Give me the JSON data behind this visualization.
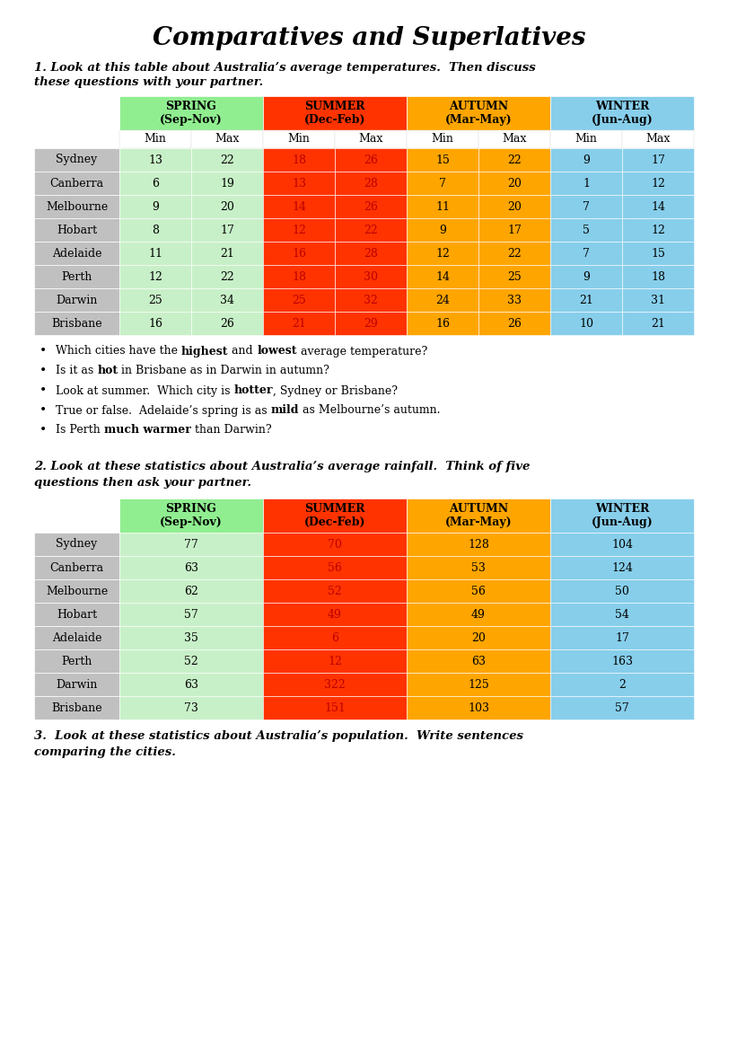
{
  "title": "Comparatives and Superlatives",
  "section1_label": "1. Look at this table about Australia’s average temperatures.  Then discuss\nthese questions with your partner.",
  "section2_label": "2. Look at these statistics about Australia’s average rainfall.  Think of five\nquestions then ask your partner.",
  "section3_label": "3.  Look at these statistics about Australia’s population.  Write sentences\ncomparing the cities.",
  "season_colors_header": [
    "#90EE90",
    "#FF3300",
    "#FFA500",
    "#87CEEB"
  ],
  "season_colors_data_spring": "#C8F0C8",
  "season_colors_data_summer": "#FF3300",
  "season_colors_data_autumn": "#FFA500",
  "season_colors_data_winter": "#87CEEB",
  "city_bg": "#C0C0C0",
  "white": "#FFFFFF",
  "cities": [
    "Sydney",
    "Canberra",
    "Melbourne",
    "Hobart",
    "Adelaide",
    "Perth",
    "Darwin",
    "Brisbane"
  ],
  "temp_data": [
    [
      13,
      22,
      18,
      26,
      15,
      22,
      9,
      17
    ],
    [
      6,
      19,
      13,
      28,
      7,
      20,
      1,
      12
    ],
    [
      9,
      20,
      14,
      26,
      11,
      20,
      7,
      14
    ],
    [
      8,
      17,
      12,
      22,
      9,
      17,
      5,
      12
    ],
    [
      11,
      21,
      16,
      28,
      12,
      22,
      7,
      15
    ],
    [
      12,
      22,
      18,
      30,
      14,
      25,
      9,
      18
    ],
    [
      25,
      34,
      25,
      32,
      24,
      33,
      21,
      31
    ],
    [
      16,
      26,
      21,
      29,
      16,
      26,
      10,
      21
    ]
  ],
  "rain_data": [
    [
      77,
      70,
      128,
      104
    ],
    [
      63,
      56,
      53,
      124
    ],
    [
      62,
      52,
      56,
      50
    ],
    [
      57,
      49,
      49,
      54
    ],
    [
      35,
      6,
      20,
      17
    ],
    [
      52,
      12,
      63,
      163
    ],
    [
      63,
      322,
      125,
      2
    ],
    [
      73,
      151,
      103,
      57
    ]
  ],
  "bullet_segments": [
    [
      [
        "Which cities have the ",
        false
      ],
      [
        "highest",
        true
      ],
      [
        " and ",
        false
      ],
      [
        "lowest",
        true
      ],
      [
        " average temperature?",
        false
      ]
    ],
    [
      [
        "Is it as ",
        false
      ],
      [
        "hot",
        true
      ],
      [
        " in Brisbane as in Darwin in autumn?",
        false
      ]
    ],
    [
      [
        "Look at summer.  Which city is ",
        false
      ],
      [
        "hotter",
        true
      ],
      [
        ", Sydney or Brisbane?",
        false
      ]
    ],
    [
      [
        "True or false.  Adelaide’s spring is as ",
        false
      ],
      [
        "mild",
        true
      ],
      [
        " as Melbourne’s autumn.",
        false
      ]
    ],
    [
      [
        "Is Perth ",
        false
      ],
      [
        "much warmer",
        true
      ],
      [
        " than Darwin?",
        false
      ]
    ]
  ]
}
